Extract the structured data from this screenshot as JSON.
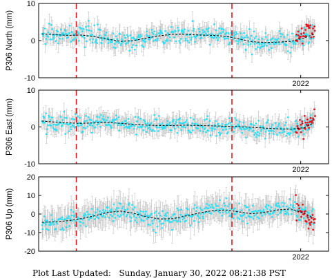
{
  "footer": {
    "label": "Plot Last Updated:",
    "value": "Sunday, January 30, 2022 08:21:38 PST"
  },
  "colors": {
    "errorbar": "#bdbdbd",
    "point": "#2fe0f5",
    "recent_point": "#e8141c",
    "model_line": "#000000",
    "event_line": "#e8141c"
  },
  "chart_data": [
    {
      "type": "scatter",
      "ylabel": "P306 North (mm)",
      "ylim": [
        -10,
        10
      ],
      "yticks": [
        -10,
        0,
        10
      ],
      "xlim": [
        2014.0,
        2022.85
      ],
      "x_tick_label": "2022",
      "x_tick_at": 2022.0,
      "event_lines": [
        2015.15,
        2019.9
      ],
      "grid": false,
      "series": [
        {
          "x": [
            2014.1,
            2014.5,
            2014.9,
            2015.3,
            2015.7,
            2016.1,
            2016.5,
            2016.9,
            2017.3,
            2017.7,
            2018.1,
            2018.5,
            2018.9,
            2019.3,
            2019.7,
            2020.1,
            2020.5,
            2020.9,
            2021.3,
            2021.7,
            2022.1,
            2022.4
          ],
          "y": [
            1.8,
            1.8,
            1.5,
            1.6,
            1.2,
            0.2,
            -0.3,
            -0.1,
            0.6,
            1.3,
            1.7,
            1.8,
            1.4,
            1.6,
            1.3,
            0.6,
            -0.4,
            -0.5,
            -0.4,
            -0.3,
            0.8,
            1.9
          ],
          "err": 2.0
        },
        {
          "x": [
            2021.85,
            2021.95,
            2022.05,
            2022.2,
            2022.35,
            2022.45
          ],
          "y": [
            0.5,
            1.2,
            1.8,
            2.5,
            2.0,
            2.8
          ],
          "err": 2.0
        }
      ],
      "model": {
        "x": [
          2014.1,
          2014.5,
          2014.9,
          2015.3,
          2015.7,
          2016.1,
          2016.5,
          2016.9,
          2017.3,
          2017.7,
          2018.1,
          2018.5,
          2018.9,
          2019.3,
          2019.7,
          2020.1,
          2020.5,
          2020.9,
          2021.3,
          2021.7,
          2022.1,
          2022.4
        ],
        "y": [
          1.8,
          1.6,
          1.4,
          1.5,
          1.1,
          0.4,
          -0.2,
          0.0,
          0.7,
          1.3,
          1.7,
          1.7,
          1.5,
          1.4,
          1.2,
          0.5,
          -0.3,
          -0.5,
          -0.4,
          -0.2,
          0.7,
          1.7
        ]
      }
    },
    {
      "type": "scatter",
      "ylabel": "P306 East (mm)",
      "ylim": [
        -10,
        10
      ],
      "yticks": [
        -10,
        0,
        10
      ],
      "xlim": [
        2014.0,
        2022.85
      ],
      "x_tick_label": "2022",
      "x_tick_at": 2022.0,
      "event_lines": [
        2015.15,
        2019.9
      ],
      "grid": false,
      "series": [
        {
          "x": [
            2014.1,
            2014.5,
            2014.9,
            2015.3,
            2015.7,
            2016.1,
            2016.5,
            2016.9,
            2017.3,
            2017.7,
            2018.1,
            2018.5,
            2018.9,
            2019.3,
            2019.7,
            2020.1,
            2020.5,
            2020.9,
            2021.3,
            2021.7,
            2022.1,
            2022.4
          ],
          "y": [
            1.7,
            1.4,
            1.1,
            1.0,
            1.1,
            1.3,
            1.0,
            0.7,
            0.5,
            0.3,
            0.4,
            0.6,
            0.4,
            0.2,
            0.3,
            0.1,
            0.0,
            -0.3,
            -0.6,
            -0.8,
            -0.2,
            1.2
          ],
          "err": 2.0
        },
        {
          "x": [
            2021.85,
            2021.95,
            2022.05,
            2022.2,
            2022.35,
            2022.45
          ],
          "y": [
            -0.4,
            0.2,
            0.5,
            0.8,
            1.3,
            2.0
          ],
          "err": 2.0
        }
      ],
      "model": {
        "x": [
          2014.1,
          2014.5,
          2014.9,
          2015.3,
          2015.7,
          2016.1,
          2016.5,
          2016.9,
          2017.3,
          2017.7,
          2018.1,
          2018.5,
          2018.9,
          2019.3,
          2019.7,
          2020.1,
          2020.5,
          2020.9,
          2021.3,
          2021.7,
          2022.1,
          2022.4
        ],
        "y": [
          1.6,
          1.3,
          1.1,
          1.0,
          1.1,
          1.2,
          1.0,
          0.7,
          0.5,
          0.4,
          0.4,
          0.5,
          0.4,
          0.3,
          0.2,
          0.1,
          -0.1,
          -0.3,
          -0.5,
          -0.6,
          -0.2,
          1.1
        ]
      }
    },
    {
      "type": "scatter",
      "ylabel": "P306 Up (mm)",
      "ylim": [
        -20,
        20
      ],
      "yticks": [
        -20,
        -10,
        0,
        10,
        20
      ],
      "xlim": [
        2014.0,
        2022.85
      ],
      "x_tick_label": "2022",
      "x_tick_at": 2022.0,
      "event_lines": [
        2015.15,
        2019.9
      ],
      "grid": false,
      "series": [
        {
          "x": [
            2014.1,
            2014.5,
            2014.9,
            2015.3,
            2015.7,
            2016.1,
            2016.5,
            2016.9,
            2017.3,
            2017.7,
            2018.1,
            2018.5,
            2018.9,
            2019.3,
            2019.7,
            2020.1,
            2020.5,
            2020.9,
            2021.3,
            2021.7,
            2022.1,
            2022.4
          ],
          "y": [
            -4.5,
            -4.8,
            -4.0,
            -2.5,
            -1.0,
            1.0,
            2.0,
            0.5,
            -2.0,
            -3.0,
            -2.5,
            -1.0,
            0.5,
            2.0,
            2.5,
            1.5,
            0.0,
            1.0,
            2.5,
            3.0,
            0.5,
            -2.5
          ],
          "err": 6.0
        },
        {
          "x": [
            2021.85,
            2021.95,
            2022.05,
            2022.2,
            2022.35,
            2022.45
          ],
          "y": [
            3.0,
            4.0,
            1.0,
            -3.0,
            -4.5,
            -3.5
          ],
          "err": 6.0
        }
      ],
      "model": {
        "x": [
          2014.1,
          2014.5,
          2014.9,
          2015.3,
          2015.7,
          2016.1,
          2016.5,
          2016.9,
          2017.3,
          2017.7,
          2018.1,
          2018.5,
          2018.9,
          2019.3,
          2019.7,
          2020.1,
          2020.5,
          2020.9,
          2021.3,
          2021.7,
          2022.1,
          2022.4
        ],
        "y": [
          -4.5,
          -4.2,
          -3.6,
          -2.5,
          -1.0,
          0.8,
          1.6,
          0.4,
          -1.5,
          -2.7,
          -2.5,
          -1.0,
          0.5,
          1.8,
          2.2,
          1.2,
          0.1,
          0.9,
          2.2,
          2.7,
          0.5,
          -2.3
        ]
      }
    }
  ]
}
